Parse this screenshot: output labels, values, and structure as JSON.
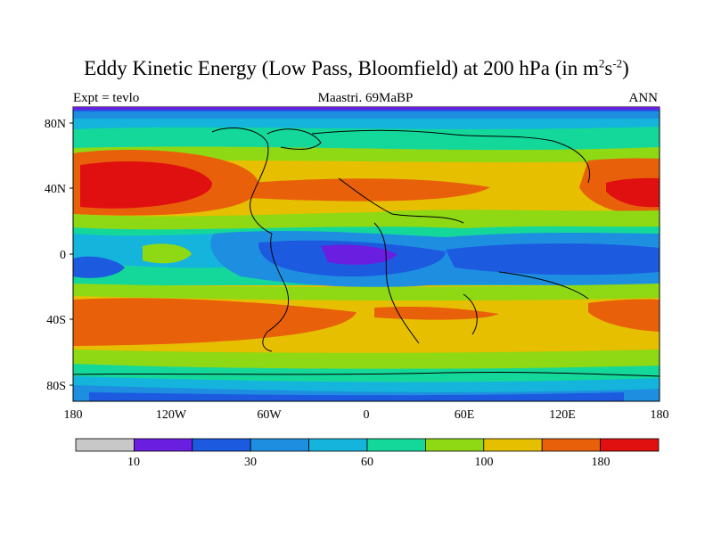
{
  "title": {
    "main": "Eddy Kinetic Energy (Low Pass, Bloomfield) at 200 hPa (in m",
    "unit_sup_1": "2",
    "unit_mid": "s",
    "unit_sup_2": "-2",
    "close": ")"
  },
  "subtitle": {
    "left": "Expt = tevlo",
    "center": "Maastri.  69MaBP",
    "right": "ANN"
  },
  "axes": {
    "lat_labels": [
      "80N",
      "40N",
      "0",
      "40S",
      "80S"
    ],
    "lon_labels": [
      "180",
      "120W",
      "60W",
      "0",
      "60E",
      "120E",
      "180"
    ]
  },
  "colorbar": {
    "colors": [
      "#c8c8c8",
      "#6a1ee0",
      "#1c5be0",
      "#1e8fe0",
      "#14b4dc",
      "#14d89a",
      "#8ed814",
      "#e6c000",
      "#e8600a",
      "#e01010"
    ],
    "labels": [
      "10",
      "30",
      "60",
      "100",
      "180"
    ]
  },
  "map_description_colors": {
    "low": "#6a1ee0",
    "high": "#e01010"
  }
}
